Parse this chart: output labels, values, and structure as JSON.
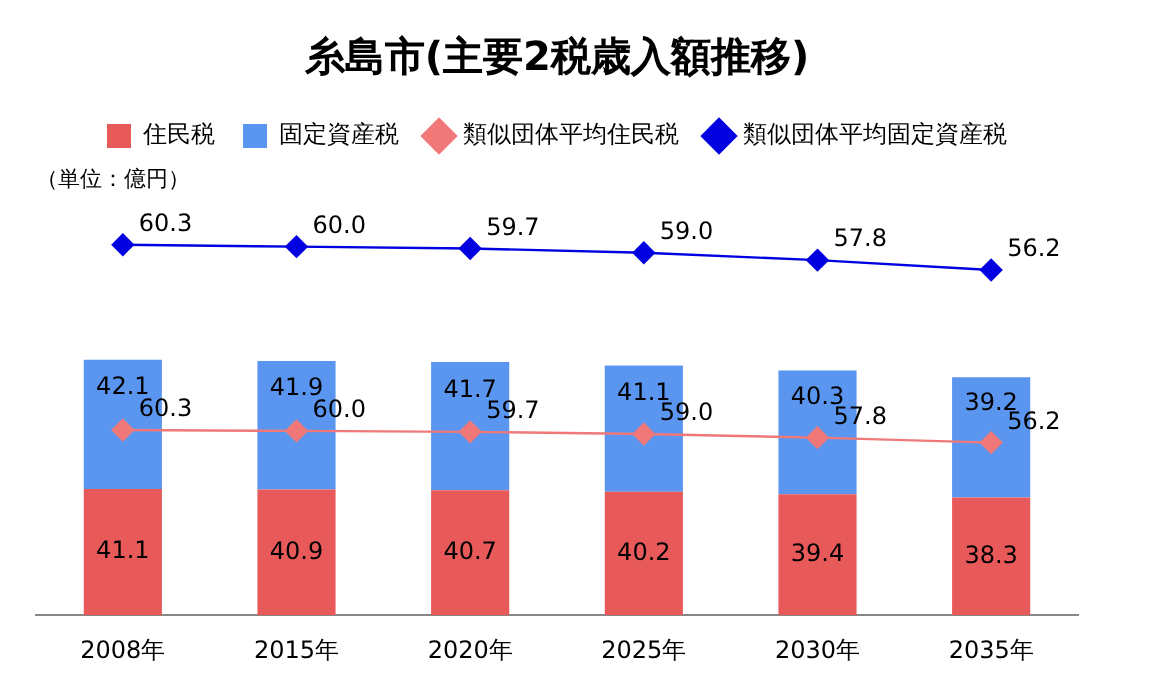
{
  "chart_data": {
    "type": "bar",
    "title": "糸島市(主要2税歳入額推移)",
    "annotations": [
      "（単位：億円）"
    ],
    "categories": [
      "2008年",
      "2015年",
      "2020年",
      "2025年",
      "2030年",
      "2035年"
    ],
    "stacked": true,
    "legend": "top",
    "grid": false,
    "tick_labels": "x",
    "series": [
      {
        "name": "住民税",
        "color": "#e85a5a",
        "values": [
          41.1,
          40.9,
          40.7,
          40.2,
          39.4,
          38.3
        ],
        "value_labels": [
          "41.1",
          "40.9",
          "40.7",
          "40.2",
          "39.4",
          "38.3"
        ]
      },
      {
        "name": "固定資産税",
        "color": "#5a96f0",
        "values": [
          42.1,
          41.9,
          41.7,
          41.1,
          40.3,
          39.2
        ],
        "value_labels": [
          "42.1",
          "41.9",
          "41.7",
          "41.1",
          "40.3",
          "39.2"
        ]
      },
      {
        "name": "類似団体平均住民税",
        "type": "line",
        "color": "#f07878",
        "marker": "diamond",
        "values": [
          60.3,
          60.0,
          59.7,
          59.0,
          57.8,
          56.2
        ],
        "value_labels": [
          "60.3",
          "60.0",
          "59.7",
          "59.0",
          "57.8",
          "56.2"
        ]
      },
      {
        "name": "類似団体平均固定資産税",
        "type": "line",
        "axis": "y2",
        "color": "#0000e0",
        "marker": "diamond",
        "values": [
          60.3,
          60.0,
          59.7,
          59.0,
          57.8,
          56.2
        ],
        "value_labels": [
          "60.3",
          "60.0",
          "59.7",
          "59.0",
          "57.8",
          "56.2"
        ]
      }
    ]
  }
}
